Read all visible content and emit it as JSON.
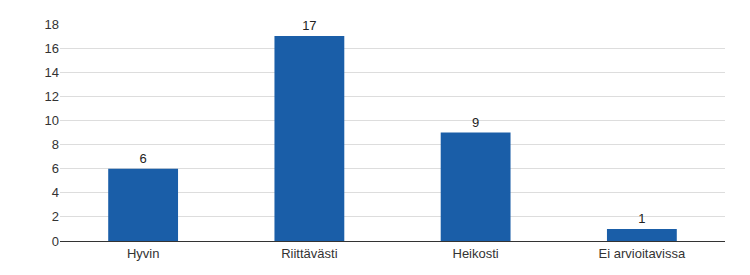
{
  "chart_data": {
    "type": "bar",
    "categories": [
      "Hyvin",
      "Riittävästi",
      "Heikosti",
      "Ei arvioitavissa"
    ],
    "values": [
      6,
      17,
      9,
      1
    ],
    "color": "#1a5ea8",
    "ylim": [
      0,
      18
    ],
    "yticks": [
      0,
      2,
      4,
      6,
      8,
      10,
      12,
      14,
      16,
      18
    ],
    "grid": true,
    "data_labels": true
  }
}
